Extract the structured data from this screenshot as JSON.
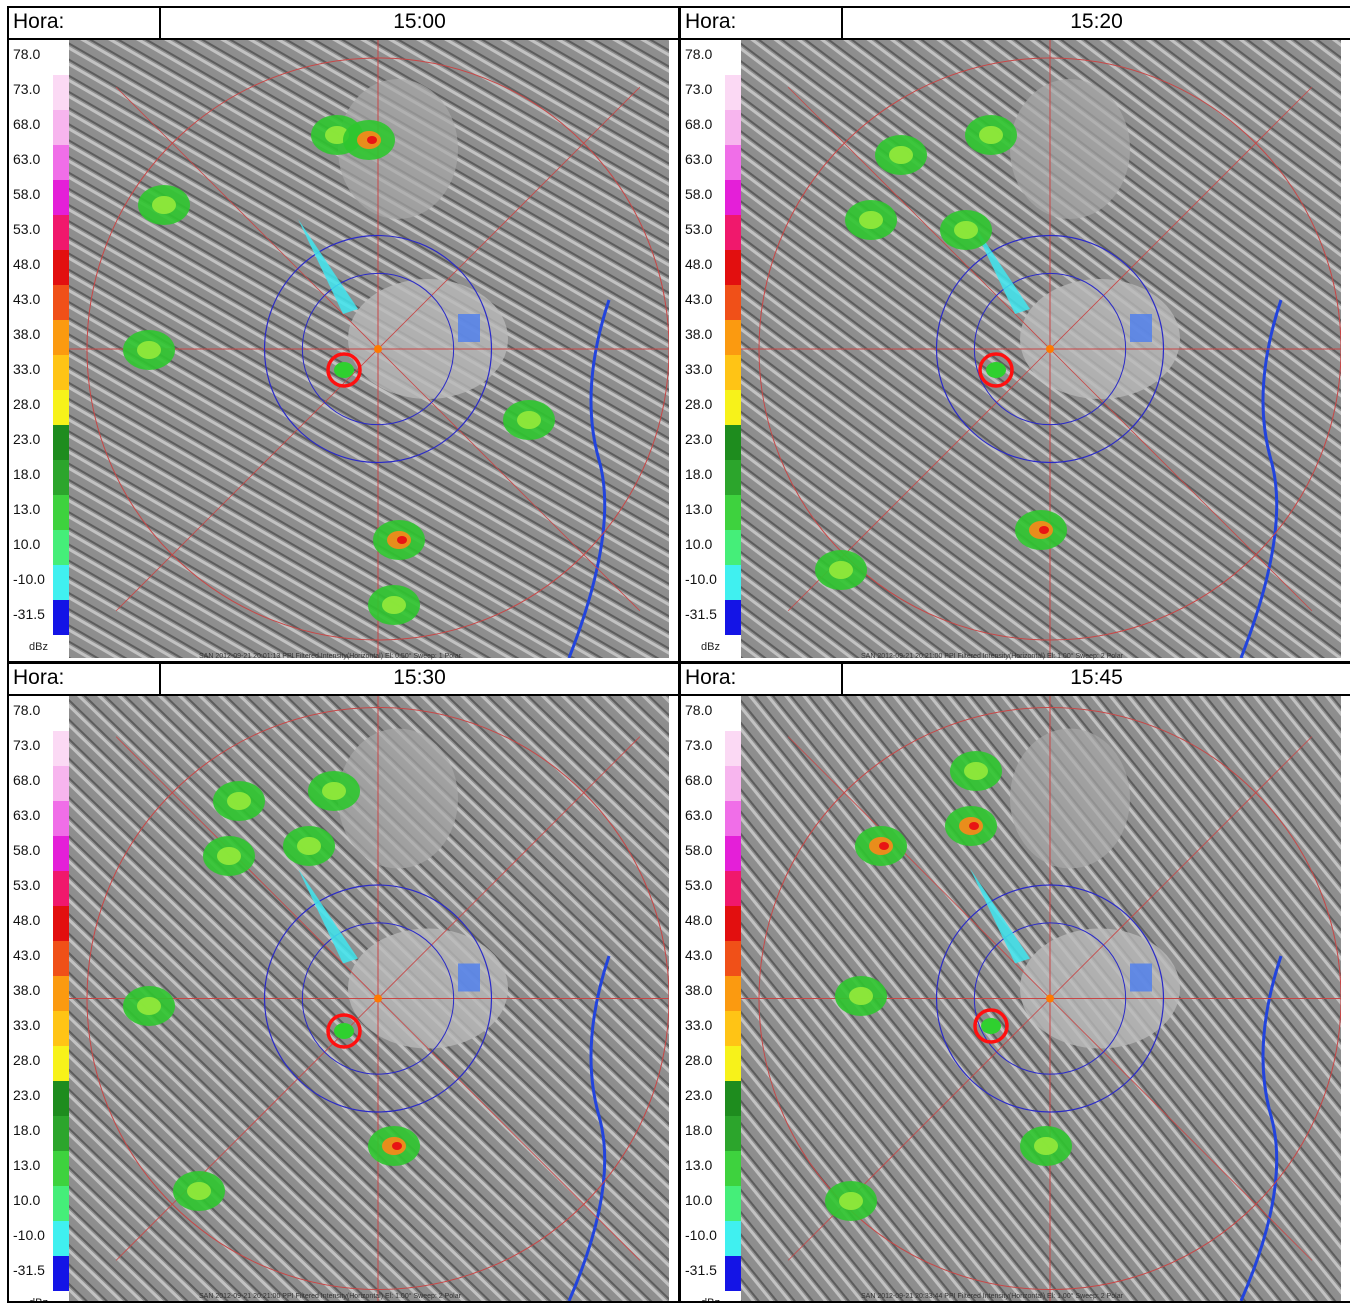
{
  "panels": [
    {
      "label": "Hora:",
      "time": "15:00",
      "footer": "SAN 2012-09-21 20:01:13 PPI Filtered Intensity(Horizontal)  El: 0.50°  Sweep: 1 Polar"
    },
    {
      "label": "Hora:",
      "time": "15:20",
      "footer": "SAN 2012-09-21 20:21:00 PPI Filtered Intensity(Horizontal)  El: 1.00°  Sweep: 2 Polar"
    },
    {
      "label": "Hora:",
      "time": "15:30",
      "footer": "SAN 2012-09-21 20:21:00 PPI Filtered Intensity(Horizontal)  El: 1.00°  Sweep: 2 Polar"
    },
    {
      "label": "Hora:",
      "time": "15:45",
      "footer": "SAN 2012-09-21 20:33:44 PPI Filtered Intensity(Horizontal)  El: 1.00°  Sweep: 2 Polar"
    }
  ],
  "legend": {
    "values": [
      "78.0",
      "73.0",
      "68.0",
      "63.0",
      "58.0",
      "53.0",
      "48.0",
      "43.0",
      "38.0",
      "33.0",
      "28.0",
      "23.0",
      "18.0",
      "13.0",
      "10.0",
      "-10.0",
      "-31.5"
    ],
    "colors": [
      "#ffffff",
      "#fbd9f4",
      "#f7b5ee",
      "#f06ee8",
      "#e41fd8",
      "#f0186c",
      "#e20f0f",
      "#f05018",
      "#fb9a10",
      "#ffc415",
      "#f7f21a",
      "#1e8c1e",
      "#2ca52c",
      "#3ed23e",
      "#45ee79",
      "#40f0f0",
      "#1414e6"
    ],
    "unit": "dBz"
  },
  "colors": {
    "marker": "#ff1010",
    "range_ring": "#2a2ac8",
    "outer_ring": "#c84646",
    "terrain": "#8a8a8a"
  }
}
